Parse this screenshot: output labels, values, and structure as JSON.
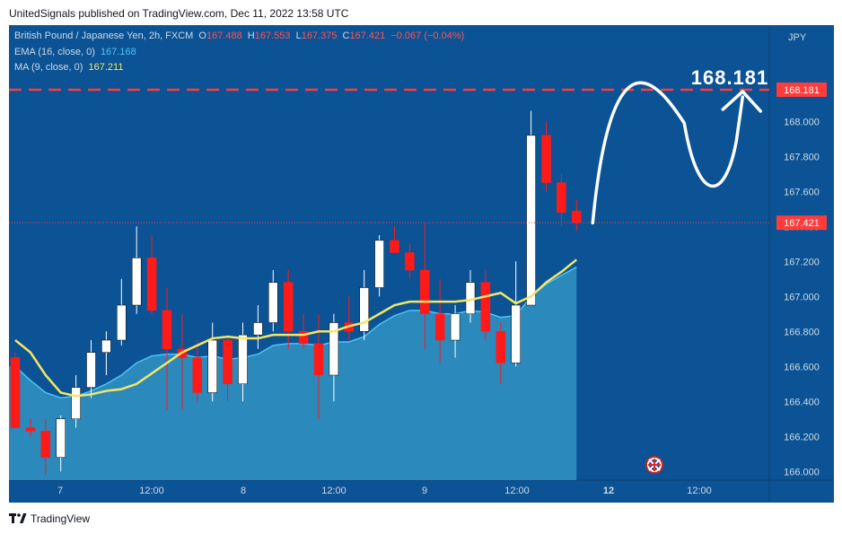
{
  "header": {
    "publisher_line": "UnitedSignals published on TradingView.com, Dec 11, 2022 13:58 UTC"
  },
  "footer": {
    "brand": "TradingView"
  },
  "legend": {
    "symbol": "British Pound / Japanese Yen, 2h, FXCM",
    "o_label": "O",
    "o_value": "167.488",
    "h_label": "H",
    "h_value": "167.553",
    "l_label": "L",
    "l_value": "167.375",
    "c_label": "C",
    "c_value": "167.421",
    "change": "−0.067 (−0.04%)",
    "ema_label": "EMA (16, close, 0)",
    "ema_value": "167.168",
    "ma_label": "MA (9, close, 0)",
    "ma_value": "167.211"
  },
  "colors": {
    "background": "#0b5394",
    "up_candle": "#ffffff",
    "down_candle": "#ff1a1a",
    "ema_fill": "#2f8fc0",
    "ma_line": "#f5e663",
    "target_line": "#ff3b3b",
    "price_label_bg": "#ff3b3b"
  },
  "chart_data": {
    "type": "candlestick",
    "currency": "JPY",
    "ylim": [
      165.95,
      168.55
    ],
    "y_ticks": [
      "166.000",
      "166.200",
      "166.400",
      "166.600",
      "166.800",
      "167.000",
      "167.200",
      "167.400",
      "167.600",
      "167.800",
      "168.000"
    ],
    "x_ticks": [
      "7",
      "12:00",
      "8",
      "12:00",
      "9",
      "12:00",
      "12",
      "12:00"
    ],
    "target_price": "168.181",
    "target_annotation": "168.181",
    "last_price": "167.421",
    "candles": [
      {
        "o": 166.65,
        "h": 166.68,
        "l": 166.25,
        "c": 166.25
      },
      {
        "o": 166.25,
        "h": 166.3,
        "l": 166.2,
        "c": 166.23
      },
      {
        "o": 166.23,
        "h": 166.3,
        "l": 165.98,
        "c": 166.08
      },
      {
        "o": 166.08,
        "h": 166.32,
        "l": 166.0,
        "c": 166.3
      },
      {
        "o": 166.3,
        "h": 166.55,
        "l": 166.25,
        "c": 166.48
      },
      {
        "o": 166.48,
        "h": 166.75,
        "l": 166.42,
        "c": 166.68
      },
      {
        "o": 166.68,
        "h": 166.8,
        "l": 166.55,
        "c": 166.75
      },
      {
        "o": 166.75,
        "h": 167.1,
        "l": 166.72,
        "c": 166.95
      },
      {
        "o": 166.95,
        "h": 167.4,
        "l": 166.9,
        "c": 167.22
      },
      {
        "o": 167.22,
        "h": 167.35,
        "l": 166.9,
        "c": 166.92
      },
      {
        "o": 166.92,
        "h": 167.05,
        "l": 166.35,
        "c": 166.7
      },
      {
        "o": 166.7,
        "h": 166.9,
        "l": 166.35,
        "c": 166.65
      },
      {
        "o": 166.65,
        "h": 166.75,
        "l": 166.4,
        "c": 166.45
      },
      {
        "o": 166.45,
        "h": 166.85,
        "l": 166.4,
        "c": 166.75
      },
      {
        "o": 166.75,
        "h": 166.78,
        "l": 166.4,
        "c": 166.5
      },
      {
        "o": 166.5,
        "h": 166.85,
        "l": 166.4,
        "c": 166.78
      },
      {
        "o": 166.78,
        "h": 166.95,
        "l": 166.7,
        "c": 166.85
      },
      {
        "o": 166.85,
        "h": 167.15,
        "l": 166.8,
        "c": 167.08
      },
      {
        "o": 167.08,
        "h": 167.15,
        "l": 166.7,
        "c": 166.8
      },
      {
        "o": 166.8,
        "h": 166.9,
        "l": 166.7,
        "c": 166.73
      },
      {
        "o": 166.73,
        "h": 166.9,
        "l": 166.3,
        "c": 166.55
      },
      {
        "o": 166.55,
        "h": 166.9,
        "l": 166.4,
        "c": 166.85
      },
      {
        "o": 166.85,
        "h": 167.0,
        "l": 166.75,
        "c": 166.8
      },
      {
        "o": 166.8,
        "h": 167.15,
        "l": 166.75,
        "c": 167.05
      },
      {
        "o": 167.05,
        "h": 167.35,
        "l": 167.0,
        "c": 167.32
      },
      {
        "o": 167.32,
        "h": 167.4,
        "l": 167.25,
        "c": 167.25
      },
      {
        "o": 167.25,
        "h": 167.3,
        "l": 167.1,
        "c": 167.15
      },
      {
        "o": 167.15,
        "h": 167.42,
        "l": 166.7,
        "c": 166.9
      },
      {
        "o": 166.9,
        "h": 167.1,
        "l": 166.62,
        "c": 166.75
      },
      {
        "o": 166.75,
        "h": 166.95,
        "l": 166.65,
        "c": 166.9
      },
      {
        "o": 166.9,
        "h": 167.15,
        "l": 166.85,
        "c": 167.08
      },
      {
        "o": 167.08,
        "h": 167.15,
        "l": 166.75,
        "c": 166.8
      },
      {
        "o": 166.8,
        "h": 166.85,
        "l": 166.5,
        "c": 166.62
      },
      {
        "o": 166.62,
        "h": 167.2,
        "l": 166.6,
        "c": 166.95
      },
      {
        "o": 166.95,
        "h": 168.06,
        "l": 166.95,
        "c": 167.92
      },
      {
        "o": 167.92,
        "h": 168.0,
        "l": 167.6,
        "c": 167.65
      },
      {
        "o": 167.65,
        "h": 167.7,
        "l": 167.4,
        "c": 167.48
      },
      {
        "o": 167.488,
        "h": 167.553,
        "l": 167.375,
        "c": 167.421
      }
    ],
    "ma": [
      166.75,
      166.68,
      166.55,
      166.45,
      166.43,
      166.44,
      166.46,
      166.47,
      166.5,
      166.56,
      166.62,
      166.68,
      166.72,
      166.76,
      166.77,
      166.76,
      166.76,
      166.78,
      166.78,
      166.78,
      166.8,
      166.8,
      166.83,
      166.85,
      166.9,
      166.95,
      166.97,
      166.97,
      166.97,
      166.97,
      166.98,
      167.0,
      167.02,
      166.96,
      167.0,
      167.08,
      167.14,
      167.21
    ],
    "ema": [
      166.6,
      166.52,
      166.45,
      166.42,
      166.43,
      166.46,
      166.5,
      166.55,
      166.62,
      166.66,
      166.67,
      166.67,
      166.65,
      166.66,
      166.64,
      166.65,
      166.67,
      166.72,
      166.73,
      166.73,
      166.72,
      166.74,
      166.74,
      166.77,
      166.84,
      166.89,
      166.92,
      166.92,
      166.9,
      166.9,
      166.92,
      166.91,
      166.88,
      166.89,
      167.0,
      167.07,
      167.12,
      167.168
    ]
  }
}
